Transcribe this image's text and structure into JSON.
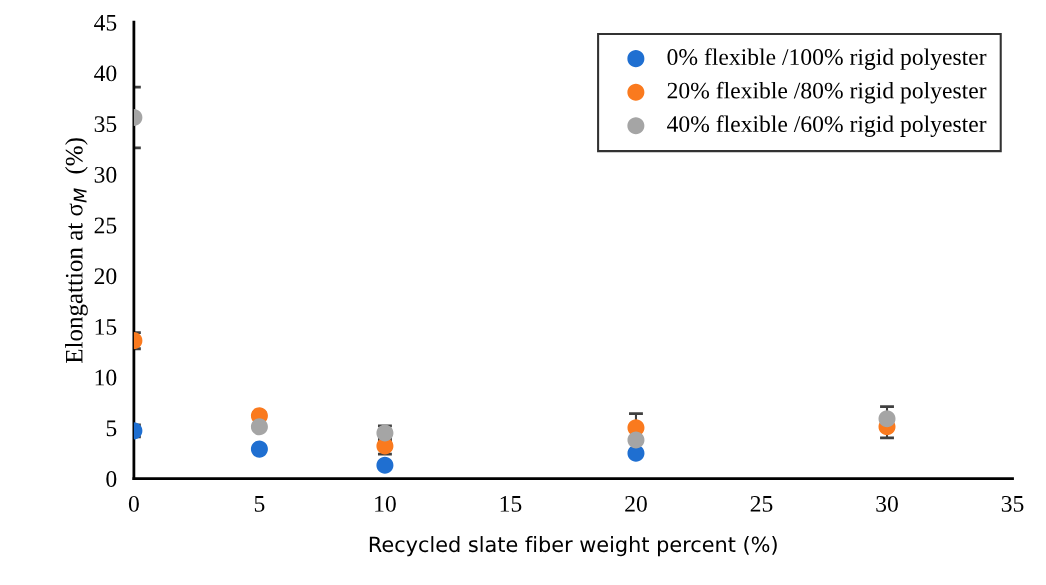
{
  "chart_data": {
    "type": "scatter",
    "xlabel": "Recycled slate fiber weight percent (%)",
    "ylabel": "Elongattion at σ$_{M}$  (%)",
    "x": [
      0,
      5,
      10,
      20,
      30
    ],
    "xlim": [
      0,
      35
    ],
    "xticks": [
      0,
      5,
      10,
      15,
      20,
      25,
      30,
      35
    ],
    "ylim": [
      0,
      45
    ],
    "yticks": [
      0,
      5,
      10,
      15,
      20,
      25,
      30,
      35,
      40,
      45
    ],
    "marker": "circle",
    "legend": "top right",
    "grid": false,
    "series": [
      {
        "name": "0% flexible /100% rigid polyester",
        "color": "#1f6fd1",
        "values": [
          4.7,
          2.9,
          1.3,
          2.5,
          null
        ],
        "errors": [
          0.6,
          null,
          null,
          null,
          null
        ]
      },
      {
        "name": "20% flexible /80% rigid polyester",
        "color": "#fa7a1e",
        "values": [
          13.6,
          6.2,
          3.2,
          5.0,
          5.1
        ],
        "errors": [
          0.8,
          0.3,
          0.8,
          1.4,
          null
        ]
      },
      {
        "name": "40% flexible /60% rigid polyester",
        "color": "#a5a5a5",
        "values": [
          35.6,
          5.1,
          4.5,
          3.8,
          5.9
        ],
        "errors": [
          3.0,
          null,
          0.7,
          null,
          [
            4.0,
            7.1
          ]
        ]
      }
    ]
  }
}
